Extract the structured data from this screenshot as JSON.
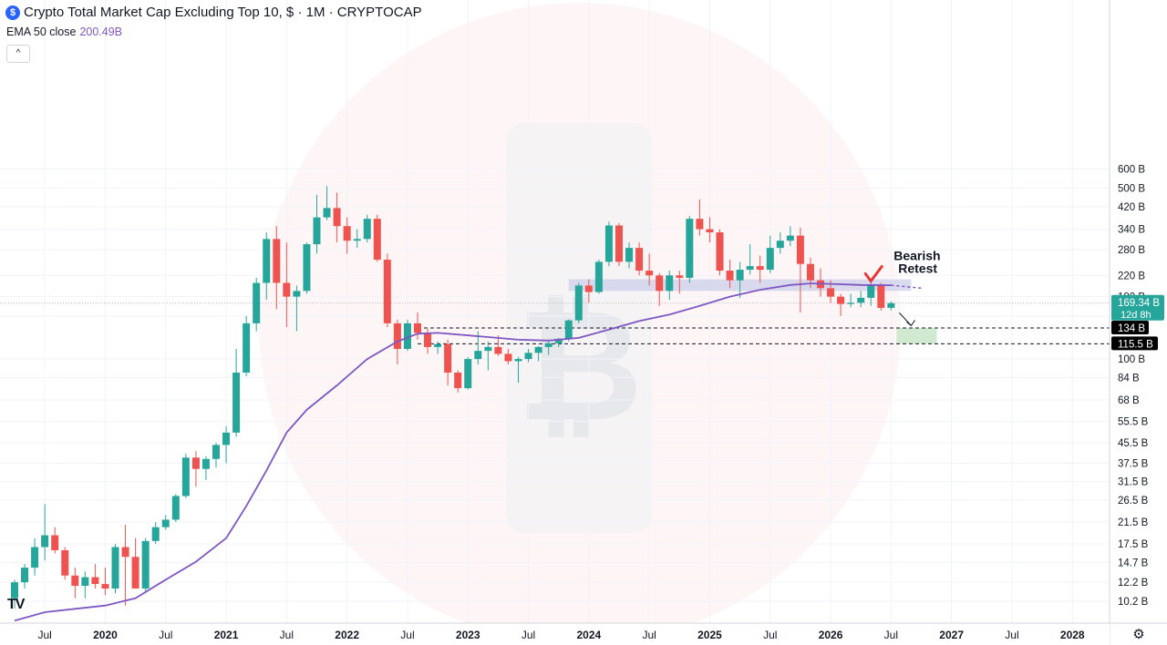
{
  "header": {
    "title": "Crypto Total Market Cap Excluding Top 10, $ · 1M · CRYPTOCAP",
    "logo_glyph": "$",
    "ema_label": "EMA 50 close",
    "ema_value": "200.49B",
    "collapse_glyph": "^",
    "settings_glyph": "⚙",
    "tv_logo": "TV"
  },
  "colors": {
    "up": "#26a69a",
    "down": "#ef5350",
    "ema": "#7e57c2",
    "zone": "#c5cae9",
    "target": "#c8e6c9",
    "annotation": "#e53935"
  },
  "chart_data": {
    "type": "candlestick",
    "title": "Crypto Total Market Cap Excluding Top 10, $ · 1M · CRYPTOCAP",
    "y_scale": "log",
    "y_unit": "B",
    "y_ticks": [
      "600 B",
      "500 B",
      "420 B",
      "340 B",
      "280 B",
      "220 B",
      "180 B",
      "150 B",
      "100 B",
      "84 B",
      "68 B",
      "55.5 B",
      "45.5 B",
      "37.5 B",
      "31.5 B",
      "26.5 B",
      "21.5 B",
      "17.5 B",
      "14.7 B",
      "12.2 B",
      "10.2 B"
    ],
    "x_ticks": [
      "Jul",
      "2020",
      "Jul",
      "2021",
      "Jul",
      "2022",
      "Jul",
      "2023",
      "Jul",
      "2024",
      "Jul",
      "2025",
      "Jul",
      "2026",
      "Jul",
      "2027",
      "Jul",
      "2028"
    ],
    "candles": [
      {
        "d": "2019-04",
        "o": 10.5,
        "h": 12.5,
        "l": 9.5,
        "c": 12.2
      },
      {
        "d": "2019-05",
        "o": 12.2,
        "h": 14.5,
        "l": 11.5,
        "c": 14.0
      },
      {
        "d": "2019-06",
        "o": 14.0,
        "h": 18.5,
        "l": 13.0,
        "c": 17.0
      },
      {
        "d": "2019-07",
        "o": 17.0,
        "h": 25.5,
        "l": 15.0,
        "c": 19.0
      },
      {
        "d": "2019-08",
        "o": 19.0,
        "h": 20.5,
        "l": 16.0,
        "c": 16.5
      },
      {
        "d": "2019-09",
        "o": 16.5,
        "h": 17.0,
        "l": 12.5,
        "c": 13.0
      },
      {
        "d": "2019-10",
        "o": 13.0,
        "h": 14.0,
        "l": 10.5,
        "c": 11.8
      },
      {
        "d": "2019-11",
        "o": 11.8,
        "h": 13.5,
        "l": 10.5,
        "c": 12.8
      },
      {
        "d": "2019-12",
        "o": 12.8,
        "h": 14.5,
        "l": 11.5,
        "c": 12.0
      },
      {
        "d": "2020-01",
        "o": 12.0,
        "h": 14.0,
        "l": 10.8,
        "c": 11.5
      },
      {
        "d": "2020-02",
        "o": 11.5,
        "h": 17.5,
        "l": 11.0,
        "c": 17.0
      },
      {
        "d": "2020-03",
        "o": 17.0,
        "h": 21.0,
        "l": 9.8,
        "c": 15.5
      },
      {
        "d": "2020-04",
        "o": 15.5,
        "h": 18.5,
        "l": 13.0,
        "c": 11.5
      },
      {
        "d": "2020-05",
        "o": 11.5,
        "h": 18.5,
        "l": 11.2,
        "c": 18.0
      },
      {
        "d": "2020-06",
        "o": 18.0,
        "h": 21.5,
        "l": 17.5,
        "c": 20.5
      },
      {
        "d": "2020-07",
        "o": 20.5,
        "h": 23.0,
        "l": 20.0,
        "c": 22.0
      },
      {
        "d": "2020-08",
        "o": 22.0,
        "h": 28.0,
        "l": 21.5,
        "c": 27.5
      },
      {
        "d": "2020-09",
        "o": 27.5,
        "h": 41.0,
        "l": 27.0,
        "c": 39.5
      },
      {
        "d": "2020-10",
        "o": 39.5,
        "h": 42.0,
        "l": 30.0,
        "c": 35.5
      },
      {
        "d": "2020-11",
        "o": 35.5,
        "h": 40.0,
        "l": 32.0,
        "c": 39.0
      },
      {
        "d": "2020-12",
        "o": 39.0,
        "h": 45.5,
        "l": 36.0,
        "c": 44.5
      },
      {
        "d": "2021-01",
        "o": 44.5,
        "h": 53.0,
        "l": 37.5,
        "c": 50.0
      },
      {
        "d": "2021-02",
        "o": 50.0,
        "h": 110.0,
        "l": 48.0,
        "c": 88.0
      },
      {
        "d": "2021-03",
        "o": 88.0,
        "h": 150.0,
        "l": 85.0,
        "c": 140.0
      },
      {
        "d": "2021-04",
        "o": 140.0,
        "h": 215.0,
        "l": 130.0,
        "c": 205.0
      },
      {
        "d": "2021-05",
        "o": 205.0,
        "h": 330.0,
        "l": 175.0,
        "c": 310.0
      },
      {
        "d": "2021-06",
        "o": 310.0,
        "h": 350.0,
        "l": 160.0,
        "c": 205.0
      },
      {
        "d": "2021-07",
        "o": 205.0,
        "h": 300.0,
        "l": 135.0,
        "c": 180.0
      },
      {
        "d": "2021-08",
        "o": 180.0,
        "h": 200.0,
        "l": 130.0,
        "c": 190.0
      },
      {
        "d": "2021-09",
        "o": 190.0,
        "h": 300.0,
        "l": 185.0,
        "c": 295.0
      },
      {
        "d": "2021-10",
        "o": 295.0,
        "h": 470.0,
        "l": 270.0,
        "c": 380.0
      },
      {
        "d": "2021-11",
        "o": 380.0,
        "h": 510.0,
        "l": 370.0,
        "c": 415.0
      },
      {
        "d": "2021-12",
        "o": 415.0,
        "h": 480.0,
        "l": 300.0,
        "c": 350.0
      },
      {
        "d": "2022-01",
        "o": 350.0,
        "h": 380.0,
        "l": 270.0,
        "c": 305.0
      },
      {
        "d": "2022-02",
        "o": 305.0,
        "h": 340.0,
        "l": 285.0,
        "c": 310.0
      },
      {
        "d": "2022-03",
        "o": 310.0,
        "h": 390.0,
        "l": 300.0,
        "c": 375.0
      },
      {
        "d": "2022-04",
        "o": 375.0,
        "h": 390.0,
        "l": 250.0,
        "c": 255.0
      },
      {
        "d": "2022-05",
        "o": 255.0,
        "h": 270.0,
        "l": 135.0,
        "c": 140.0
      },
      {
        "d": "2022-06",
        "o": 140.0,
        "h": 145.0,
        "l": 95.0,
        "c": 110.0
      },
      {
        "d": "2022-07",
        "o": 110.0,
        "h": 145.0,
        "l": 108.0,
        "c": 140.0
      },
      {
        "d": "2022-08",
        "o": 140.0,
        "h": 155.0,
        "l": 120.0,
        "c": 128.0
      },
      {
        "d": "2022-09",
        "o": 128.0,
        "h": 133.0,
        "l": 105.0,
        "c": 112.0
      },
      {
        "d": "2022-10",
        "o": 112.0,
        "h": 118.0,
        "l": 105.0,
        "c": 115.0
      },
      {
        "d": "2022-11",
        "o": 115.0,
        "h": 120.0,
        "l": 78.0,
        "c": 88.0
      },
      {
        "d": "2022-12",
        "o": 88.0,
        "h": 90.0,
        "l": 73.0,
        "c": 76.0
      },
      {
        "d": "2023-01",
        "o": 76.0,
        "h": 102.0,
        "l": 75.0,
        "c": 100.0
      },
      {
        "d": "2023-02",
        "o": 100.0,
        "h": 130.0,
        "l": 95.0,
        "c": 108.0
      },
      {
        "d": "2023-03",
        "o": 108.0,
        "h": 118.0,
        "l": 90.0,
        "c": 112.0
      },
      {
        "d": "2023-04",
        "o": 112.0,
        "h": 125.0,
        "l": 103.0,
        "c": 105.0
      },
      {
        "d": "2023-05",
        "o": 105.0,
        "h": 110.0,
        "l": 95.0,
        "c": 98.0
      },
      {
        "d": "2023-06",
        "o": 98.0,
        "h": 102.0,
        "l": 80.0,
        "c": 100.0
      },
      {
        "d": "2023-07",
        "o": 100.0,
        "h": 110.0,
        "l": 97.0,
        "c": 106.0
      },
      {
        "d": "2023-08",
        "o": 106.0,
        "h": 113.0,
        "l": 98.0,
        "c": 112.0
      },
      {
        "d": "2023-09",
        "o": 112.0,
        "h": 118.0,
        "l": 104.0,
        "c": 116.0
      },
      {
        "d": "2023-10",
        "o": 116.0,
        "h": 122.0,
        "l": 112.0,
        "c": 121.0
      },
      {
        "d": "2023-11",
        "o": 121.0,
        "h": 145.0,
        "l": 118.0,
        "c": 144.0
      },
      {
        "d": "2023-12",
        "o": 144.0,
        "h": 205.0,
        "l": 140.0,
        "c": 200.0
      },
      {
        "d": "2024-01",
        "o": 200.0,
        "h": 212.0,
        "l": 170.0,
        "c": 188.0
      },
      {
        "d": "2024-02",
        "o": 188.0,
        "h": 255.0,
        "l": 185.0,
        "c": 250.0
      },
      {
        "d": "2024-03",
        "o": 250.0,
        "h": 365.0,
        "l": 240.0,
        "c": 352.0
      },
      {
        "d": "2024-04",
        "o": 352.0,
        "h": 360.0,
        "l": 240.0,
        "c": 250.0
      },
      {
        "d": "2024-05",
        "o": 250.0,
        "h": 300.0,
        "l": 235.0,
        "c": 285.0
      },
      {
        "d": "2024-06",
        "o": 285.0,
        "h": 300.0,
        "l": 220.0,
        "c": 230.0
      },
      {
        "d": "2024-07",
        "o": 230.0,
        "h": 270.0,
        "l": 200.0,
        "c": 220.0
      },
      {
        "d": "2024-08",
        "o": 220.0,
        "h": 225.0,
        "l": 165.0,
        "c": 190.0
      },
      {
        "d": "2024-09",
        "o": 190.0,
        "h": 230.0,
        "l": 175.0,
        "c": 220.0
      },
      {
        "d": "2024-10",
        "o": 220.0,
        "h": 230.0,
        "l": 185.0,
        "c": 215.0
      },
      {
        "d": "2024-11",
        "o": 215.0,
        "h": 385.0,
        "l": 205.0,
        "c": 375.0
      },
      {
        "d": "2024-12",
        "o": 375.0,
        "h": 450.0,
        "l": 320.0,
        "c": 340.0
      },
      {
        "d": "2025-01",
        "o": 340.0,
        "h": 380.0,
        "l": 300.0,
        "c": 330.0
      },
      {
        "d": "2025-02",
        "o": 330.0,
        "h": 340.0,
        "l": 220.0,
        "c": 230.0
      },
      {
        "d": "2025-03",
        "o": 230.0,
        "h": 255.0,
        "l": 195.0,
        "c": 210.0
      },
      {
        "d": "2025-04",
        "o": 210.0,
        "h": 250.0,
        "l": 178.0,
        "c": 232.0
      },
      {
        "d": "2025-05",
        "o": 232.0,
        "h": 295.0,
        "l": 222.0,
        "c": 240.0
      },
      {
        "d": "2025-06",
        "o": 240.0,
        "h": 265.0,
        "l": 205.0,
        "c": 232.0
      },
      {
        "d": "2025-07",
        "o": 232.0,
        "h": 320.0,
        "l": 225.0,
        "c": 285.0
      },
      {
        "d": "2025-08",
        "o": 285.0,
        "h": 330.0,
        "l": 270.0,
        "c": 305.0
      },
      {
        "d": "2025-09",
        "o": 305.0,
        "h": 350.0,
        "l": 290.0,
        "c": 320.0
      },
      {
        "d": "2025-10",
        "o": 320.0,
        "h": 345.0,
        "l": 155.0,
        "c": 245.0
      },
      {
        "d": "2025-11",
        "o": 245.0,
        "h": 260.0,
        "l": 195.0,
        "c": 210.0
      },
      {
        "d": "2025-12",
        "o": 210.0,
        "h": 235.0,
        "l": 180.0,
        "c": 195.0
      },
      {
        "d": "2026-01",
        "o": 195.0,
        "h": 210.0,
        "l": 170.0,
        "c": 180.0
      },
      {
        "d": "2026-02",
        "o": 180.0,
        "h": 185.0,
        "l": 150.0,
        "c": 168.0
      },
      {
        "d": "2026-03",
        "o": 168.0,
        "h": 185.0,
        "l": 163.0,
        "c": 170.0
      },
      {
        "d": "2026-04",
        "o": 170.0,
        "h": 190.0,
        "l": 163.0,
        "c": 178.0
      },
      {
        "d": "2026-05",
        "o": 178.0,
        "h": 210.0,
        "l": 165.0,
        "c": 202.0
      },
      {
        "d": "2026-06",
        "o": 202.0,
        "h": 205.0,
        "l": 158.0,
        "c": 162.0
      },
      {
        "d": "2026-07",
        "o": 162.0,
        "h": 172.0,
        "l": 158.0,
        "c": 169.34
      }
    ],
    "ema50": [
      [
        "2019-04",
        8.5
      ],
      [
        "2019-07",
        9.2
      ],
      [
        "2019-10",
        9.5
      ],
      [
        "2020-01",
        9.8
      ],
      [
        "2020-04",
        10.5
      ],
      [
        "2020-07",
        12.5
      ],
      [
        "2020-10",
        14.8
      ],
      [
        "2021-01",
        18.5
      ],
      [
        "2021-03",
        25.0
      ],
      [
        "2021-05",
        35.0
      ],
      [
        "2021-07",
        50.0
      ],
      [
        "2021-09",
        62.0
      ],
      [
        "2021-12",
        78.0
      ],
      [
        "2022-03",
        100.0
      ],
      [
        "2022-06",
        118.0
      ],
      [
        "2022-08",
        127.0
      ],
      [
        "2022-10",
        128.0
      ],
      [
        "2022-12",
        126.0
      ],
      [
        "2023-03",
        123.0
      ],
      [
        "2023-06",
        120.0
      ],
      [
        "2023-09",
        119.0
      ],
      [
        "2023-12",
        122.0
      ],
      [
        "2024-03",
        132.0
      ],
      [
        "2024-06",
        143.0
      ],
      [
        "2024-09",
        152.0
      ],
      [
        "2024-12",
        165.0
      ],
      [
        "2025-03",
        180.0
      ],
      [
        "2025-06",
        192.0
      ],
      [
        "2025-09",
        201.0
      ],
      [
        "2025-11",
        204.0
      ],
      [
        "2026-01",
        203.0
      ],
      [
        "2026-04",
        201.0
      ],
      [
        "2026-07",
        200.49
      ]
    ],
    "ema_projection": [
      [
        "2026-07",
        200.49
      ],
      [
        "2026-10",
        195.0
      ]
    ],
    "resistance_zone": {
      "from": "2023-11",
      "to": "2026-09",
      "low": 190,
      "high": 212
    },
    "support_lines": [
      134,
      115.5
    ],
    "target_zone": {
      "from": "2026-07",
      "to": "2026-11",
      "low": 115.5,
      "high": 134
    },
    "forecast_arrow": {
      "from": [
        "2026-08",
        160
      ],
      "to": [
        "2026-09",
        137
      ]
    },
    "annotation": {
      "text_line1": "Bearish",
      "text_line2": "Retest",
      "at": "2026-05"
    },
    "last_price": {
      "value": "169.34 B",
      "countdown": "12d 8h"
    },
    "level_labels": [
      "134 B",
      "115.5 B"
    ]
  }
}
